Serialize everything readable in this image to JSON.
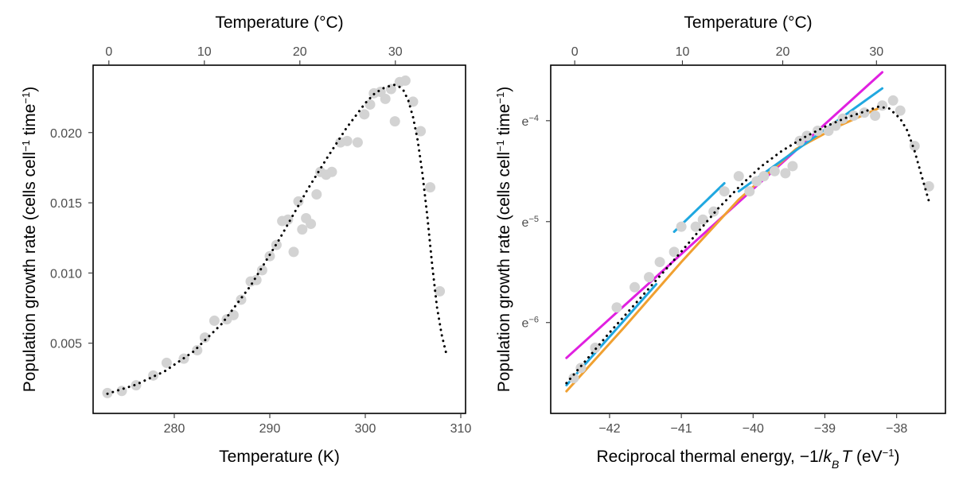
{
  "chart_data": [
    {
      "type": "scatter",
      "panel": "left",
      "xlabel": "Temperature (K)",
      "ylabel_main": "Population growth rate (cells cell",
      "ylabel_sup1": "−1",
      "ylabel_mid": " time",
      "ylabel_sup2": "−1",
      "ylabel_end": ")",
      "top_axis_label": "Temperature (°C)",
      "xlim": [
        271.5,
        310.5
      ],
      "ylim": [
        0.0,
        0.0248
      ],
      "xticks": [
        280,
        290,
        300,
        310
      ],
      "xtick_labels": [
        "280",
        "290",
        "300",
        "310"
      ],
      "yticks": [
        0.005,
        0.01,
        0.015,
        0.02
      ],
      "ytick_labels": [
        "0.005",
        "0.010",
        "0.015",
        "0.020"
      ],
      "top_ticks_celsius": [
        0,
        10,
        20,
        30
      ],
      "top_tick_labels": [
        "0",
        "10",
        "20",
        "30"
      ],
      "point_color": "#d3d3d3",
      "curve_color": "#000000",
      "points_x": [
        273.0,
        274.5,
        276.0,
        277.8,
        279.2,
        281.0,
        282.4,
        283.2,
        284.2,
        285.5,
        286.2,
        287.0,
        288.0,
        288.6,
        289.2,
        290.0,
        290.7,
        291.3,
        291.9,
        292.5,
        293.0,
        293.4,
        293.8,
        294.3,
        294.9,
        295.3,
        295.9,
        296.5,
        297.4,
        298.1,
        299.2,
        299.9,
        300.5,
        300.9,
        301.6,
        302.1,
        302.7,
        303.1,
        303.6,
        304.2,
        305.0,
        305.8,
        306.8,
        307.8
      ],
      "points_y": [
        0.00145,
        0.0016,
        0.002,
        0.0027,
        0.0036,
        0.0039,
        0.0045,
        0.0054,
        0.0066,
        0.0067,
        0.007,
        0.0081,
        0.0094,
        0.0095,
        0.0102,
        0.0112,
        0.012,
        0.0137,
        0.0138,
        0.0115,
        0.0151,
        0.0131,
        0.0139,
        0.0135,
        0.0156,
        0.0172,
        0.017,
        0.0172,
        0.0193,
        0.0194,
        0.0193,
        0.0213,
        0.022,
        0.0228,
        0.0229,
        0.0224,
        0.0231,
        0.0208,
        0.0236,
        0.0237,
        0.0222,
        0.0201,
        0.0161,
        0.0087
      ],
      "curve_x": [
        273.0,
        276.0,
        279.0,
        282.0,
        285.0,
        288.0,
        291.0,
        294.0,
        296.0,
        298.0,
        300.0,
        301.0,
        302.0,
        303.0,
        303.5,
        304.0,
        304.5,
        305.0,
        305.5,
        306.0,
        306.5,
        307.0,
        307.5,
        308.0,
        308.5
      ],
      "curve_y": [
        0.0014,
        0.00205,
        0.003,
        0.0044,
        0.0064,
        0.0091,
        0.0124,
        0.016,
        0.0182,
        0.0203,
        0.0221,
        0.0228,
        0.0232,
        0.0234,
        0.0233,
        0.023,
        0.0223,
        0.0211,
        0.0194,
        0.017,
        0.014,
        0.0106,
        0.0076,
        0.0056,
        0.0042
      ]
    },
    {
      "type": "scatter",
      "panel": "right",
      "xlabel_main": "Reciprocal thermal energy, −1/",
      "xlabel_k": "k",
      "xlabel_sub": "B",
      "xlabel_T": "T",
      "xlabel_unit": " (eV",
      "xlabel_sup": "−1",
      "xlabel_end": ")",
      "ylabel_main": "Population growth rate (cells cell",
      "ylabel_sup1": "−1",
      "ylabel_mid": " time",
      "ylabel_sup2": "−1",
      "ylabel_end": ")",
      "top_axis_label": "Temperature (°C)",
      "xlim": [
        -42.82,
        -37.32
      ],
      "ylim": [
        -6.9,
        -3.45
      ],
      "xticks": [
        -42,
        -41,
        -40,
        -39,
        -38
      ],
      "xtick_labels": [
        "−42",
        "−41",
        "−40",
        "−39",
        "−38"
      ],
      "yticks": [
        -6,
        -5,
        -4
      ],
      "ytick_base": "e",
      "ytick_exponents": [
        "−6",
        "−5",
        "−4"
      ],
      "top_ticks_celsius": [
        0,
        10,
        20,
        30
      ],
      "top_tick_labels": [
        "0",
        "10",
        "20",
        "30"
      ],
      "point_color": "#d3d3d3",
      "curve_color": "#000000",
      "points_x": [
        -42.5,
        -42.4,
        -42.2,
        -41.9,
        -41.65,
        -41.45,
        -41.3,
        -41.1,
        -41.0,
        -40.8,
        -40.7,
        -40.55,
        -40.4,
        -40.2,
        -40.05,
        -39.95,
        -39.85,
        -39.7,
        -39.55,
        -39.45,
        -39.35,
        -39.25,
        -39.1,
        -38.95,
        -38.85,
        -38.75,
        -38.6,
        -38.45,
        -38.3,
        -38.2,
        -38.05,
        -37.95,
        -37.75,
        -37.55
      ],
      "points_y": [
        -6.55,
        -6.45,
        -6.25,
        -5.85,
        -5.65,
        -5.55,
        -5.4,
        -5.3,
        -5.05,
        -5.05,
        -4.98,
        -4.9,
        -4.7,
        -4.55,
        -4.7,
        -4.6,
        -4.55,
        -4.5,
        -4.52,
        -4.45,
        -4.2,
        -4.15,
        -4.1,
        -4.1,
        -4.05,
        -3.98,
        -3.95,
        -3.92,
        -3.95,
        -3.85,
        -3.8,
        -3.9,
        -4.25,
        -4.65
      ],
      "curve_x": [
        -42.6,
        -42.3,
        -42.0,
        -41.7,
        -41.4,
        -41.1,
        -40.8,
        -40.5,
        -40.2,
        -39.9,
        -39.6,
        -39.3,
        -39.0,
        -38.7,
        -38.45,
        -38.25,
        -38.1,
        -37.95,
        -37.85,
        -37.75,
        -37.65,
        -37.55
      ],
      "curve_y": [
        -6.6,
        -6.35,
        -6.1,
        -5.86,
        -5.62,
        -5.38,
        -5.13,
        -4.88,
        -4.66,
        -4.46,
        -4.3,
        -4.17,
        -4.06,
        -3.97,
        -3.91,
        -3.86,
        -3.88,
        -3.98,
        -4.1,
        -4.3,
        -4.55,
        -4.8
      ],
      "fit_lines": [
        {
          "name": "magenta",
          "color": "#e020e0",
          "x": [
            -42.6,
            -38.2
          ],
          "y": [
            -6.35,
            -3.52
          ]
        },
        {
          "name": "orange",
          "color": "#f0a030",
          "x": [
            -42.6,
            -41.8,
            -41.0,
            -40.2,
            -39.4,
            -38.8,
            -38.2
          ],
          "y": [
            -6.68,
            -6.05,
            -5.4,
            -4.78,
            -4.28,
            -4.05,
            -3.86
          ]
        },
        {
          "name": "cyan-1",
          "color": "#20a8e0",
          "x": [
            -42.6,
            -41.35
          ],
          "y": [
            -6.62,
            -5.62
          ]
        },
        {
          "name": "cyan-2",
          "color": "#20a8e0",
          "x": [
            -41.1,
            -40.4
          ],
          "y": [
            -5.1,
            -4.62
          ]
        },
        {
          "name": "cyan-3",
          "color": "#20a8e0",
          "x": [
            -40.2,
            -38.2
          ],
          "y": [
            -4.7,
            -3.68
          ]
        }
      ]
    }
  ]
}
